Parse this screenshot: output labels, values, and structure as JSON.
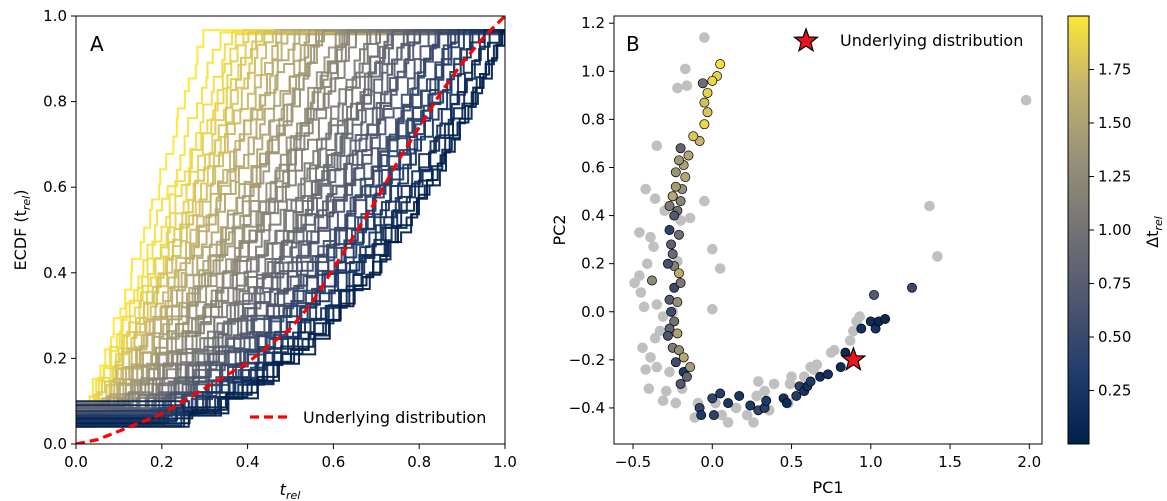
{
  "chart_data": [
    {
      "type": "line",
      "panel_label": "A",
      "xlabel": "t",
      "xlabel_sub": "rel",
      "ylabel": "ECDF (t",
      "ylabel_sub": "rel",
      "ylabel_close": ")",
      "xlim": [
        0,
        1
      ],
      "ylim": [
        0,
        1
      ],
      "xticks": [
        "0.0",
        "0.2",
        "0.4",
        "0.6",
        "0.8",
        "1.0"
      ],
      "yticks": [
        "0.0",
        "0.2",
        "0.4",
        "0.6",
        "0.8",
        "1.0"
      ],
      "legend": {
        "label": "Underlying distribution",
        "location": "lower-right",
        "color": "#ff0000",
        "style": "dashed"
      },
      "underlying_distribution": {
        "x": [
          0.0,
          0.05,
          0.1,
          0.15,
          0.2,
          0.25,
          0.3,
          0.35,
          0.4,
          0.45,
          0.5,
          0.55,
          0.6,
          0.65,
          0.7,
          0.75,
          0.8,
          0.85,
          0.9,
          0.95,
          1.0
        ],
        "y": [
          0.0,
          0.01,
          0.03,
          0.05,
          0.07,
          0.1,
          0.13,
          0.16,
          0.19,
          0.23,
          0.27,
          0.33,
          0.41,
          0.49,
          0.57,
          0.66,
          0.74,
          0.82,
          0.89,
          0.95,
          1.0
        ]
      },
      "ecdf_band": {
        "n_curves": 64,
        "step_plateau": 0.967,
        "earliest_completion_x": 0.31,
        "latest_completion_x": 1.0,
        "color_by": "delta_t_rel"
      },
      "colormap": [
        "#00204c",
        "#213d6b",
        "#4e5670",
        "#737374",
        "#989278",
        "#c3b26e",
        "#fde737"
      ]
    },
    {
      "type": "scatter",
      "panel_label": "B",
      "xlabel": "PC1",
      "ylabel": "PC2",
      "xlim": [
        -0.62,
        2.08
      ],
      "ylim": [
        -0.55,
        1.23
      ],
      "xticks": [
        "−0.5",
        "0.0",
        "0.5",
        "1.0",
        "1.5",
        "2.0"
      ],
      "xtick_values": [
        -0.5,
        0.0,
        0.5,
        1.0,
        1.5,
        2.0
      ],
      "yticks": [
        "−0.4",
        "−0.2",
        "0.0",
        "0.2",
        "0.4",
        "0.6",
        "0.8",
        "1.0",
        "1.2"
      ],
      "ytick_values": [
        -0.4,
        -0.2,
        0.0,
        0.2,
        0.4,
        0.6,
        0.8,
        1.0,
        1.2
      ],
      "legend": {
        "label": "Underlying distribution",
        "location": "top-right",
        "marker": "star",
        "color": "#e8161c"
      },
      "underlying_point": [
        0.89,
        -0.2
      ],
      "gray_points": [
        [
          -0.05,
          1.14
        ],
        [
          -0.17,
          1.01
        ],
        [
          -0.16,
          0.94
        ],
        [
          -0.22,
          0.93
        ],
        [
          -0.35,
          0.69
        ],
        [
          -0.42,
          0.51
        ],
        [
          -0.36,
          0.47
        ],
        [
          -0.46,
          0.33
        ],
        [
          -0.39,
          0.31
        ],
        [
          -0.37,
          0.27
        ],
        [
          -0.41,
          0.2
        ],
        [
          -0.49,
          0.12
        ],
        [
          -0.46,
          0.15
        ],
        [
          -0.45,
          0.08
        ],
        [
          -0.43,
          0.02
        ],
        [
          -0.35,
          0.03
        ],
        [
          -0.31,
          -0.02
        ],
        [
          -0.33,
          -0.08
        ],
        [
          -0.36,
          -0.11
        ],
        [
          -0.44,
          -0.15
        ],
        [
          -0.39,
          -0.19
        ],
        [
          -0.42,
          -0.24
        ],
        [
          -0.35,
          -0.23
        ],
        [
          -0.4,
          -0.32
        ],
        [
          -0.29,
          -0.33
        ],
        [
          -0.27,
          -0.25
        ],
        [
          -0.19,
          -0.32
        ],
        [
          -0.31,
          -0.37
        ],
        [
          -0.23,
          -0.38
        ],
        [
          -0.09,
          -0.38
        ],
        [
          -0.11,
          -0.44
        ],
        [
          0.02,
          -0.38
        ],
        [
          0.06,
          -0.43
        ],
        [
          0.1,
          -0.46
        ],
        [
          0.15,
          -0.4
        ],
        [
          0.22,
          -0.43
        ],
        [
          0.26,
          -0.46
        ],
        [
          0.28,
          -0.35
        ],
        [
          0.29,
          -0.29
        ],
        [
          0.33,
          -0.33
        ],
        [
          0.36,
          -0.41
        ],
        [
          0.39,
          -0.3
        ],
        [
          0.48,
          -0.38
        ],
        [
          0.5,
          -0.27
        ],
        [
          0.49,
          -0.3
        ],
        [
          0.58,
          -0.27
        ],
        [
          0.62,
          -0.23
        ],
        [
          0.64,
          -0.24
        ],
        [
          0.66,
          -0.22
        ],
        [
          0.75,
          -0.17
        ],
        [
          0.77,
          -0.16
        ],
        [
          0.87,
          -0.12
        ],
        [
          0.91,
          -0.04
        ],
        [
          0.93,
          -0.02
        ],
        [
          0.89,
          -0.08
        ],
        [
          1.37,
          0.44
        ],
        [
          1.42,
          0.23
        ],
        [
          1.98,
          0.88
        ],
        [
          0.0,
          0.26
        ],
        [
          0.05,
          0.18
        ],
        [
          0.0,
          0.01
        ],
        [
          -0.25,
          0.0
        ],
        [
          -0.22,
          0.21
        ],
        [
          -0.2,
          0.38
        ],
        [
          -0.14,
          0.39
        ],
        [
          -0.3,
          0.42
        ],
        [
          -0.25,
          0.48
        ],
        [
          -0.05,
          0.46
        ]
      ],
      "colored_points": [
        [
          0.05,
          1.03,
          1.95
        ],
        [
          0.03,
          0.98,
          1.85
        ],
        [
          0.0,
          0.96,
          1.9
        ],
        [
          -0.03,
          0.91,
          1.88
        ],
        [
          -0.06,
          0.95,
          0.95
        ],
        [
          -0.05,
          0.87,
          1.75
        ],
        [
          -0.03,
          0.83,
          1.8
        ],
        [
          -0.05,
          0.78,
          1.9
        ],
        [
          -0.08,
          0.71,
          1.7
        ],
        [
          -0.12,
          0.73,
          1.8
        ],
        [
          -0.15,
          0.65,
          1.55
        ],
        [
          -0.18,
          0.61,
          1.5
        ],
        [
          -0.2,
          0.68,
          0.85
        ],
        [
          -0.21,
          0.63,
          1.4
        ],
        [
          -0.23,
          0.58,
          1.35
        ],
        [
          -0.17,
          0.56,
          1.55
        ],
        [
          -0.19,
          0.51,
          1.3
        ],
        [
          -0.23,
          0.52,
          1.45
        ],
        [
          -0.25,
          0.48,
          1.55
        ],
        [
          -0.2,
          0.46,
          1.2
        ],
        [
          -0.22,
          0.42,
          1.0
        ],
        [
          -0.24,
          0.4,
          0.7
        ],
        [
          -0.27,
          0.44,
          1.1
        ],
        [
          -0.27,
          0.34,
          0.4
        ],
        [
          -0.21,
          0.32,
          0.95
        ],
        [
          -0.26,
          0.28,
          0.8
        ],
        [
          -0.25,
          0.24,
          0.9
        ],
        [
          -0.24,
          0.19,
          1.15
        ],
        [
          -0.21,
          0.16,
          1.6
        ],
        [
          -0.28,
          0.2,
          0.6
        ],
        [
          -0.38,
          0.13,
          1.25
        ],
        [
          -0.24,
          0.1,
          0.5
        ],
        [
          -0.2,
          0.12,
          1.05
        ],
        [
          -0.27,
          0.05,
          0.75
        ],
        [
          -0.22,
          0.04,
          1.3
        ],
        [
          -0.26,
          0.0,
          0.55
        ],
        [
          -0.24,
          -0.04,
          1.0
        ],
        [
          -0.27,
          -0.07,
          0.85
        ],
        [
          -0.28,
          -0.1,
          0.65
        ],
        [
          -0.22,
          -0.09,
          1.5
        ],
        [
          -0.25,
          -0.15,
          1.1
        ],
        [
          -0.21,
          -0.16,
          1.3
        ],
        [
          -0.18,
          -0.19,
          1.55
        ],
        [
          -0.23,
          -0.21,
          0.55
        ],
        [
          -0.18,
          -0.25,
          0.3
        ],
        [
          -0.16,
          -0.27,
          0.85
        ],
        [
          -0.14,
          -0.23,
          1.45
        ],
        [
          -0.2,
          -0.3,
          0.7
        ],
        [
          -0.08,
          -0.4,
          0.45
        ],
        [
          -0.07,
          -0.43,
          0.3
        ],
        [
          0.0,
          -0.36,
          0.45
        ],
        [
          0.01,
          -0.43,
          0.4
        ],
        [
          0.05,
          -0.34,
          0.35
        ],
        [
          0.1,
          -0.38,
          0.25
        ],
        [
          0.17,
          -0.35,
          0.25
        ],
        [
          0.24,
          -0.39,
          0.3
        ],
        [
          0.29,
          -0.41,
          0.45
        ],
        [
          0.33,
          -0.4,
          0.35
        ],
        [
          0.34,
          -0.37,
          0.3
        ],
        [
          0.45,
          -0.36,
          0.2
        ],
        [
          0.47,
          -0.38,
          0.15
        ],
        [
          0.53,
          -0.35,
          0.35
        ],
        [
          0.55,
          -0.31,
          0.4
        ],
        [
          0.58,
          -0.33,
          0.25
        ],
        [
          0.6,
          -0.31,
          0.2
        ],
        [
          0.62,
          -0.29,
          0.3
        ],
        [
          0.68,
          -0.27,
          0.15
        ],
        [
          0.73,
          -0.26,
          0.2
        ],
        [
          0.81,
          -0.23,
          0.15
        ],
        [
          0.84,
          -0.17,
          0.1
        ],
        [
          0.94,
          -0.07,
          0.2
        ],
        [
          1.0,
          -0.04,
          0.15
        ],
        [
          1.03,
          -0.07,
          0.2
        ],
        [
          1.05,
          -0.04,
          0.12
        ],
        [
          1.09,
          -0.03,
          0.1
        ],
        [
          1.02,
          0.07,
          0.7
        ],
        [
          1.26,
          0.1,
          0.5
        ]
      ],
      "colorbar": {
        "label": "Δt",
        "label_sub": "rel",
        "range": [
          0.0,
          2.0
        ],
        "ticks": [
          "0.25",
          "0.50",
          "0.75",
          "1.00",
          "1.25",
          "1.50",
          "1.75"
        ],
        "tick_values": [
          0.25,
          0.5,
          0.75,
          1.0,
          1.25,
          1.5,
          1.75
        ]
      },
      "gray_color": "#c0c0c0",
      "colormap": [
        "#00204c",
        "#213d6b",
        "#4e5670",
        "#737374",
        "#989278",
        "#c3b26e",
        "#fde737"
      ]
    }
  ]
}
